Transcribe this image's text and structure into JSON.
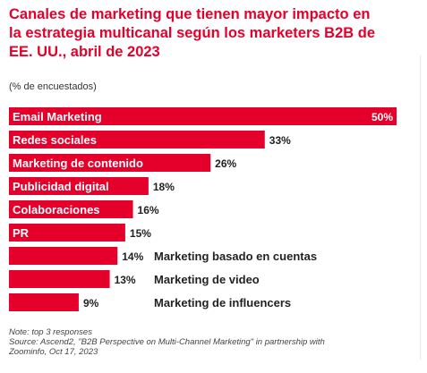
{
  "header": {
    "title": "Canales de marketing que tienen mayor impacto en la estrategia multicanal según los marketers B2B de EE. UU., abril de 2023",
    "subtitle": "(% de encuestados)"
  },
  "colors": {
    "bar": "#e4002b",
    "title": "#e4002b",
    "inside_label": "#ffffff",
    "outside_label": "#222222"
  },
  "chart_data": {
    "type": "bar",
    "orientation": "horizontal",
    "title": "Canales de marketing que tienen mayor impacto en la estrategia multicanal según los marketers B2B de EE. UU., abril de 2023",
    "unit": "(% de encuestados)",
    "xlim": [
      0,
      50
    ],
    "grid": false,
    "legend": "none",
    "categories": [
      "Email Marketing",
      "Redes sociales",
      "Marketing de contenido",
      "Publicidad digital",
      "Colaboraciones",
      "PR",
      "Marketing basado en cuentas",
      "Marketing de video",
      "Marketing de influencers"
    ],
    "values": [
      50,
      33,
      26,
      18,
      16,
      15,
      14,
      13,
      9
    ],
    "value_labels": [
      "50%",
      "33%",
      "26%",
      "18%",
      "16%",
      "15%",
      "14%",
      "13%",
      "9%"
    ],
    "label_outside": [
      false,
      false,
      false,
      false,
      false,
      false,
      true,
      true,
      true
    ]
  },
  "footer": {
    "note": "Note: top 3 responses",
    "source_line1": "Source: Ascend2, \"B2B Perspective on Multi-Channel Marketing\" in partnership with",
    "source_line2": "Zoominfo, Oct 17, 2023"
  }
}
